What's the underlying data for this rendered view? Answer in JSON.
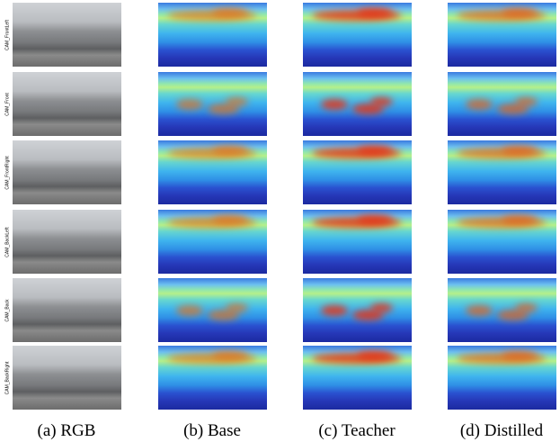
{
  "rows": [
    {
      "label": "CAM_FrontLeft"
    },
    {
      "label": "CAM_Front"
    },
    {
      "label": "CAM_FrontRight"
    },
    {
      "label": "CAM_BackLeft"
    },
    {
      "label": "CAM_Back"
    },
    {
      "label": "CAM_BackRight"
    }
  ],
  "captions": [
    "(a) RGB",
    "(b) Base",
    "(c) Teacher",
    "(d) Distilled"
  ]
}
